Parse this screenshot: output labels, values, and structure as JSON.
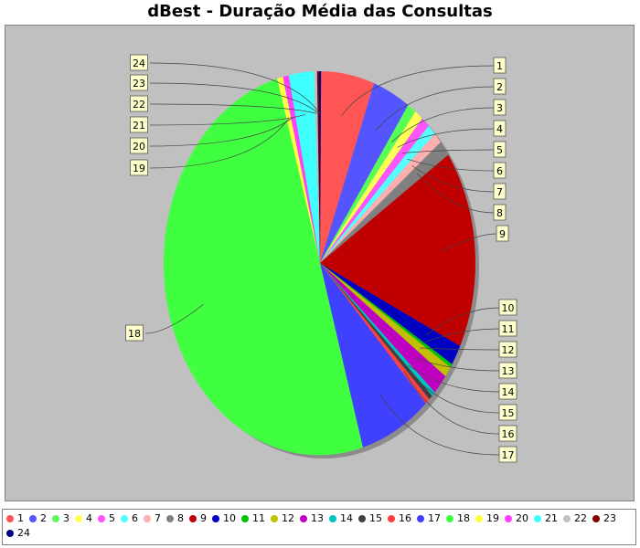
{
  "chart_data": {
    "type": "pie",
    "title": "dBest - Duração Média das Consultas",
    "categories": [
      "1",
      "2",
      "3",
      "4",
      "5",
      "6",
      "7",
      "8",
      "9",
      "10",
      "11",
      "12",
      "13",
      "14",
      "15",
      "16",
      "17",
      "18",
      "19",
      "20",
      "21",
      "22",
      "23",
      "24"
    ],
    "values": [
      5.6,
      3.9,
      0.9,
      0.9,
      0.9,
      0.9,
      0.9,
      1.3,
      16.5,
      1.7,
      0.3,
      0.9,
      1.7,
      0.4,
      0.4,
      0.5,
      7.4,
      49.5,
      0.6,
      0.6,
      2.6,
      0.3,
      0.3,
      0.0
    ],
    "colors": [
      "#ff5555",
      "#5555ff",
      "#55ff55",
      "#ffff55",
      "#ff55ff",
      "#55ffff",
      "#ffafaf",
      "#808080",
      "#c00000",
      "#0000c0",
      "#00c000",
      "#c0c000",
      "#c000c0",
      "#00c0c0",
      "#404040",
      "#ff4040",
      "#4040ff",
      "#40ff40",
      "#ffff40",
      "#ff40ff",
      "#40ffff",
      "#c0c0c0",
      "#800000",
      "#000080"
    ],
    "legend_position": "bottom"
  }
}
